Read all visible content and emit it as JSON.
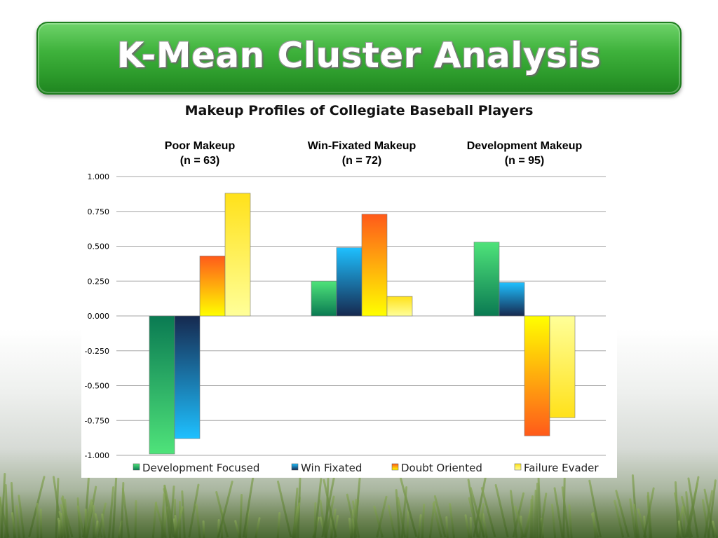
{
  "slide": {
    "title": "K-Mean Cluster Analysis"
  },
  "colors": {
    "banner": "#3fb23c",
    "gridline": "#a6a6a6"
  },
  "chart_data": {
    "type": "bar",
    "title": "Makeup Profiles of Collegiate Baseball Players",
    "xlabel": "",
    "ylabel": "",
    "ylim": [
      -1.0,
      1.0
    ],
    "yticks": [
      "1.000",
      "0.750",
      "0.500",
      "0.250",
      "0.000",
      "-0.250",
      "-0.500",
      "-0.750",
      "-1.000"
    ],
    "ytick_values": [
      1.0,
      0.75,
      0.5,
      0.25,
      0.0,
      -0.25,
      -0.5,
      -0.75,
      -1.0
    ],
    "grid": true,
    "legend_position": "bottom",
    "groups": [
      {
        "title_line1": "Poor Makeup",
        "title_line2": "(n = 63)"
      },
      {
        "title_line1": "Win-Fixated Makeup",
        "title_line2": "(n = 72)"
      },
      {
        "title_line1": "Development Makeup",
        "title_line2": "(n = 95)"
      }
    ],
    "series": [
      {
        "name": "Development Focused",
        "values": [
          -0.99,
          0.25,
          0.53
        ],
        "color_top": "#4fe37a",
        "color_bottom": "#0a7a52"
      },
      {
        "name": "Win Fixated",
        "values": [
          -0.88,
          0.49,
          0.24
        ],
        "color_top": "#1ec0ff",
        "color_bottom": "#16294f"
      },
      {
        "name": "Doubt Oriented",
        "values": [
          0.43,
          0.73,
          -0.86
        ],
        "color_top": "#ff5a1a",
        "color_bottom": "#ffff00"
      },
      {
        "name": "Failure Evader",
        "values": [
          0.88,
          0.14,
          -0.73
        ],
        "color_top": "#ffe11a",
        "color_bottom": "#ffff99"
      }
    ]
  }
}
